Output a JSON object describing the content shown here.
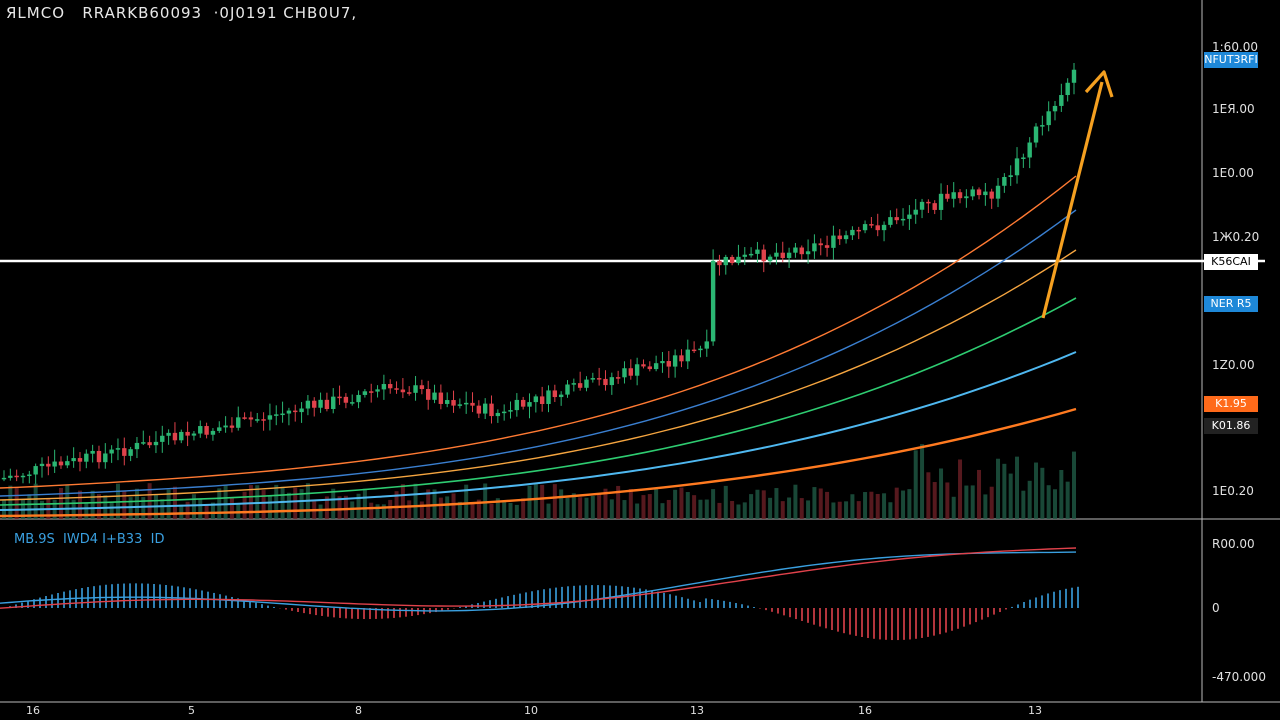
{
  "header": {
    "symbol": "ЯLMCO",
    "info": "RRARKB60093  ·0J0191 CHB0U7,"
  },
  "macd_header": "MB.9S  IWD4 I+B33  ID",
  "colors": {
    "background": "#000000",
    "up_candle": "#2bb673",
    "down_candle": "#e0424b",
    "ema_orange": "#ff7a33",
    "ema_blue": "#3a7fd0",
    "ema_yellow": "#f5a540",
    "ema_green": "#2ecc71",
    "ema_cyan": "#4fb8f0",
    "ema_orange_thick": "#ff7a20",
    "arrow": "#f5a020",
    "resistance": "#ffffff"
  },
  "price_axis": {
    "ticks": [
      {
        "label": "1:60.00",
        "top": 40
      },
      {
        "label": "1ЕЯ.00",
        "top": 102
      },
      {
        "label": "1Е0.00",
        "top": 166
      },
      {
        "label": "1Ж0.20",
        "top": 230
      },
      {
        "label": "1Z0.00",
        "top": 358
      },
      {
        "label": "1Е0.20",
        "top": 484
      }
    ]
  },
  "tags": [
    {
      "label": "NFUT3RFI",
      "top": 52,
      "bg": "#1e88d8",
      "fg": "#ffffff"
    },
    {
      "label": "K56CAI",
      "top": 254,
      "bg": "#ffffff",
      "fg": "#000000"
    },
    {
      "label": "NER R5",
      "top": 296,
      "bg": "#1e88d8",
      "fg": "#ffffff"
    },
    {
      "label": "K1.95",
      "top": 396,
      "bg": "#ff6a1a",
      "fg": "#ffffff"
    },
    {
      "label": "K01.86",
      "top": 418,
      "bg": "#222222",
      "fg": "#ffffff"
    }
  ],
  "macd_axis": {
    "ticks": [
      {
        "label": "R00.00",
        "top": 537
      },
      {
        "label": "0",
        "top": 601
      },
      {
        "label": "-470.000",
        "top": 670
      }
    ]
  },
  "time_axis": {
    "ticks": [
      {
        "label": "16",
        "left": 26
      },
      {
        "label": "5",
        "left": 188
      },
      {
        "label": "8",
        "left": 355
      },
      {
        "label": "10",
        "left": 524
      },
      {
        "label": "13",
        "left": 690
      },
      {
        "label": "16",
        "left": 858
      },
      {
        "label": "13",
        "left": 1028
      }
    ]
  },
  "chart_data": {
    "type": "candlestick",
    "title": "",
    "resistance_level": "K56CAI",
    "series_names": [
      "EMA",
      "EMA",
      "EMA",
      "EMA",
      "EMA",
      "EMA"
    ],
    "trend_arrow": "up",
    "y_axis_labels": [
      "1:60.00",
      "1ЕЯ.00",
      "1Е0.00",
      "1Ж0.20",
      "1Z0.00",
      "1Е0.20"
    ],
    "macd_axis_labels": [
      "R00.00",
      "0",
      "-470.000"
    ],
    "x_axis_labels": [
      "16",
      "5",
      "8",
      "10",
      "13",
      "16",
      "13"
    ],
    "grid": false
  }
}
